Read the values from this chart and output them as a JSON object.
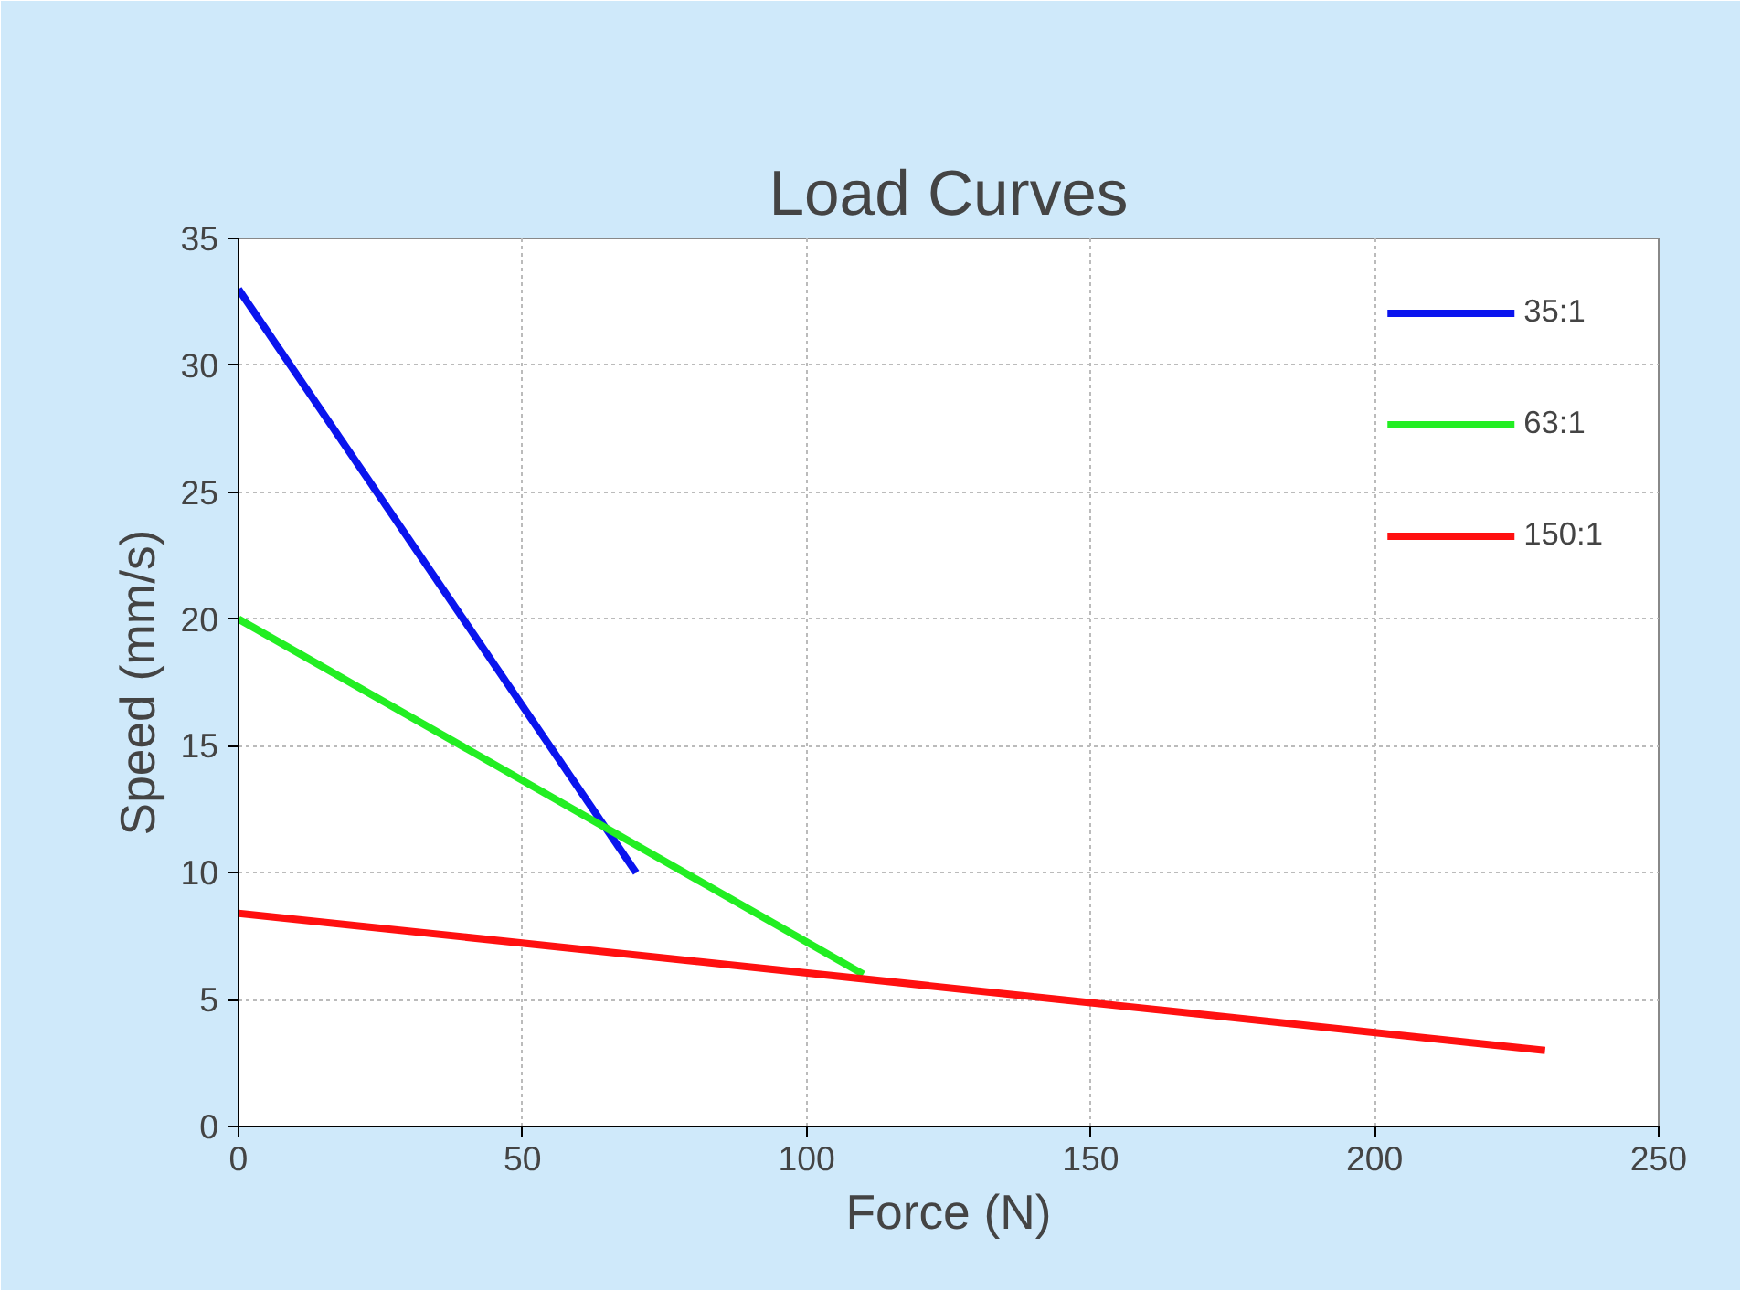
{
  "chart_data": {
    "type": "line",
    "title": "Load Curves",
    "xlabel": "Force (N)",
    "ylabel": "Speed (mm/s)",
    "xlim": [
      0,
      250
    ],
    "xticks": [
      0,
      50,
      100,
      150,
      200,
      250
    ],
    "ylim": [
      0,
      35
    ],
    "yticks": [
      0,
      5,
      10,
      15,
      20,
      25,
      30,
      35
    ],
    "grid": true,
    "legend": "top right",
    "marker": "none",
    "line_style": "solid",
    "series": [
      {
        "name": "35:1",
        "color": "#0a14ee",
        "x": [
          0,
          70
        ],
        "values": [
          33,
          10
        ]
      },
      {
        "name": "63:1",
        "color": "#22ee22",
        "x": [
          0,
          110
        ],
        "values": [
          20,
          6
        ]
      },
      {
        "name": "150:1",
        "color": "#ff1010",
        "x": [
          0,
          230
        ],
        "values": [
          8.4,
          3
        ]
      }
    ]
  }
}
